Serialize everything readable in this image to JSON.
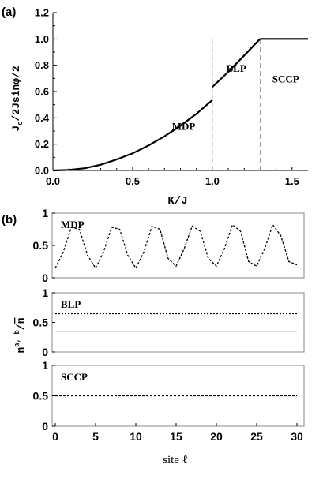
{
  "chart_data": [
    {
      "panel_label": "(a)",
      "type": "line",
      "xlabel": "K/J",
      "ylabel": "J_c/2Jsinφ/2",
      "ylabel_main": "J",
      "ylabel_sub": "c",
      "ylabel_rest": "/2Jsinφ/2",
      "xlim": [
        0,
        1.6
      ],
      "ylim": [
        0,
        1.2
      ],
      "xticks": [
        "0.0",
        "0.5",
        "1.0",
        "1.5"
      ],
      "xtick_values": [
        0,
        0.5,
        1.0,
        1.5
      ],
      "yticks": [
        "0.0",
        "0.2",
        "0.4",
        "0.6",
        "0.8",
        "1.0",
        "1.2"
      ],
      "ytick_values": [
        0,
        0.2,
        0.4,
        0.6,
        0.8,
        1.0,
        1.2
      ],
      "segments": [
        {
          "name": "",
          "x": [
            0,
            0.1,
            0.2,
            0.3,
            0.4,
            0.5,
            0.6,
            0.7,
            0.8,
            0.9,
            1.0
          ],
          "y": [
            0,
            0.004,
            0.017,
            0.044,
            0.084,
            0.13,
            0.19,
            0.26,
            0.34,
            0.43,
            0.535
          ]
        },
        {
          "name": "",
          "x": [
            1.0,
            1.1,
            1.2,
            1.3
          ],
          "y": [
            0.635,
            0.75,
            0.875,
            1.0
          ]
        },
        {
          "name": "",
          "x": [
            1.3,
            1.6
          ],
          "y": [
            1.0,
            1.0
          ]
        }
      ],
      "boundaries": [
        1.0,
        1.3
      ],
      "region_labels": [
        {
          "text": "MDP",
          "x": 0.82,
          "y": 0.31
        },
        {
          "text": "BLP",
          "x": 1.15,
          "y": 0.75
        },
        {
          "text": "SCCP",
          "x": 1.46,
          "y": 0.67
        }
      ]
    },
    {
      "panel_label": "(b)",
      "type": "line",
      "xlabel": "site ℓ",
      "ylabel": "n^{a,b}/n̄",
      "ylabel_main": "n",
      "ylabel_sup": "a, b",
      "ylabel_bar": "n",
      "xlim": [
        0,
        30
      ],
      "xticks": [
        "0",
        "5",
        "10",
        "15",
        "20",
        "25",
        "30"
      ],
      "xtick_values": [
        0,
        5,
        10,
        15,
        20,
        25,
        30
      ],
      "subplots": [
        {
          "label": "MDP",
          "ylim": [
            0,
            1
          ],
          "yticks": [
            "0",
            "0.5",
            "1"
          ],
          "ytick_values": [
            0,
            0.5,
            1
          ],
          "series": [
            {
              "name": "",
              "style": "dashed",
              "x": [
                0,
                1,
                2,
                3,
                4,
                5,
                6,
                7,
                8,
                9,
                10,
                11,
                12,
                13,
                14,
                15,
                16,
                17,
                18,
                19,
                20,
                21,
                22,
                23,
                24,
                25,
                26,
                27,
                28,
                29,
                30
              ],
              "y": [
                0.15,
                0.4,
                0.78,
                0.75,
                0.35,
                0.15,
                0.4,
                0.78,
                0.75,
                0.35,
                0.15,
                0.4,
                0.8,
                0.75,
                0.3,
                0.18,
                0.45,
                0.8,
                0.72,
                0.3,
                0.18,
                0.45,
                0.82,
                0.72,
                0.25,
                0.18,
                0.45,
                0.82,
                0.65,
                0.25,
                0.2
              ]
            }
          ]
        },
        {
          "label": "BLP",
          "ylim": [
            0,
            1
          ],
          "yticks": [
            "0",
            "0.5",
            "1"
          ],
          "ytick_values": [
            0,
            0.5,
            1
          ],
          "series": [
            {
              "name": "",
              "style": "dotted",
              "x": [
                0,
                30
              ],
              "y": [
                0.65,
                0.65
              ]
            },
            {
              "name": "",
              "style": "solid-gray",
              "x": [
                0,
                30
              ],
              "y": [
                0.35,
                0.35
              ]
            }
          ]
        },
        {
          "label": "SCCP",
          "ylim": [
            0,
            1
          ],
          "yticks": [
            "0",
            "0.5",
            "1"
          ],
          "ytick_values": [
            0,
            0.5,
            1
          ],
          "series": [
            {
              "name": "",
              "style": "dashed",
              "x": [
                0,
                30
              ],
              "y": [
                0.5,
                0.5
              ]
            }
          ]
        }
      ]
    }
  ],
  "colors": {
    "line": "#000000",
    "guide": "#9a9a9a",
    "frame": "#888888",
    "gray_series": "#aaaaaa"
  }
}
